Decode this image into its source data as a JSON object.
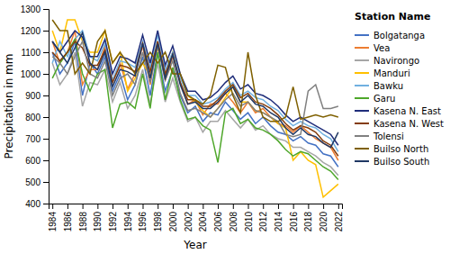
{
  "chart_data": {
    "type": "line",
    "title": "Station Name",
    "xlabel": "Year",
    "ylabel": "Precipitation in mm",
    "x": [
      1984,
      1985,
      1986,
      1987,
      1988,
      1989,
      1990,
      1991,
      1992,
      1993,
      1994,
      1995,
      1996,
      1997,
      1998,
      1999,
      2000,
      2001,
      2002,
      2003,
      2004,
      2005,
      2006,
      2007,
      2008,
      2009,
      2010,
      2011,
      2012,
      2013,
      2014,
      2015,
      2016,
      2017,
      2018,
      2019,
      2020,
      2021,
      2022
    ],
    "series": [
      {
        "name": "Bolgatanga",
        "color": "#4472c4",
        "values": [
          1100,
          1000,
          1050,
          1150,
          900,
          1050,
          1000,
          1080,
          920,
          1000,
          880,
          950,
          1080,
          900,
          1100,
          920,
          1020,
          900,
          820,
          850,
          780,
          820,
          810,
          870,
          830,
          790,
          820,
          770,
          800,
          760,
          730,
          720,
          690,
          710,
          680,
          670,
          630,
          620,
          570
        ]
      },
      {
        "name": "Vea",
        "color": "#ed7d31",
        "values": [
          1150,
          1050,
          1100,
          1200,
          950,
          1020,
          1020,
          1130,
          970,
          1050,
          930,
          1000,
          1130,
          950,
          1150,
          970,
          1080,
          960,
          860,
          880,
          810,
          860,
          860,
          910,
          870,
          820,
          870,
          820,
          840,
          800,
          770,
          760,
          730,
          760,
          730,
          700,
          680,
          660,
          600
        ]
      },
      {
        "name": "Navirongo",
        "color": "#a6a6a6",
        "values": [
          1050,
          950,
          1000,
          1100,
          850,
          960,
          950,
          1020,
          870,
          960,
          840,
          900,
          1020,
          860,
          1050,
          870,
          980,
          870,
          780,
          800,
          730,
          780,
          780,
          830,
          790,
          750,
          790,
          740,
          760,
          720,
          700,
          690,
          660,
          660,
          640,
          620,
          590,
          570,
          530
        ]
      },
      {
        "name": "Manduri",
        "color": "#ffc000",
        "values": [
          1200,
          1100,
          1250,
          1250,
          1150,
          1100,
          1100,
          1200,
          1050,
          1100,
          920,
          980,
          1050,
          990,
          1120,
          990,
          1100,
          1000,
          900,
          870,
          830,
          800,
          840,
          890,
          940,
          870,
          870,
          830,
          820,
          800,
          770,
          750,
          600,
          640,
          600,
          580,
          430,
          460,
          490
        ]
      },
      {
        "name": "Bawku",
        "color": "#70b0e0",
        "values": [
          1050,
          1150,
          1080,
          1160,
          1200,
          1080,
          1060,
          1140,
          970,
          1060,
          1050,
          1030,
          1150,
          1030,
          1180,
          1020,
          1100,
          980,
          900,
          900,
          860,
          870,
          890,
          930,
          960,
          900,
          920,
          890,
          880,
          850,
          830,
          790,
          760,
          780,
          760,
          750,
          720,
          700,
          640
        ]
      },
      {
        "name": "Garu",
        "color": "#4ea72a",
        "values": [
          980,
          1050,
          1100,
          1160,
          1000,
          920,
          1000,
          1020,
          750,
          860,
          870,
          840,
          1000,
          840,
          1100,
          880,
          1030,
          880,
          790,
          800,
          760,
          740,
          590,
          820,
          840,
          770,
          790,
          750,
          740,
          720,
          690,
          650,
          620,
          640,
          630,
          600,
          570,
          550,
          510
        ]
      },
      {
        "name": "Kasena N. East",
        "color": "#1f2d7a",
        "values": [
          1150,
          1100,
          1150,
          1200,
          1170,
          1080,
          1080,
          1160,
          1000,
          1080,
          1070,
          1050,
          1180,
          1050,
          1200,
          1040,
          1130,
          1000,
          920,
          920,
          880,
          890,
          920,
          960,
          990,
          930,
          950,
          910,
          900,
          880,
          850,
          810,
          780,
          800,
          780,
          760,
          740,
          720,
          670
        ]
      },
      {
        "name": "Kasena N. West",
        "color": "#843c0c",
        "values": [
          1100,
          1060,
          1100,
          1150,
          1120,
          1040,
          1040,
          1110,
          960,
          1040,
          1030,
          1010,
          1140,
          1010,
          1150,
          1000,
          1090,
          960,
          880,
          880,
          850,
          850,
          880,
          920,
          950,
          890,
          910,
          870,
          860,
          840,
          810,
          770,
          740,
          760,
          750,
          730,
          690,
          670,
          620
        ]
      },
      {
        "name": "Tolensi",
        "color": "#808080",
        "values": [
          1080,
          1050,
          1000,
          1080,
          1150,
          1000,
          980,
          1060,
          900,
          980,
          1000,
          950,
          1100,
          960,
          1130,
          970,
          1060,
          910,
          830,
          840,
          820,
          800,
          840,
          880,
          910,
          850,
          870,
          830,
          820,
          800,
          780,
          720,
          710,
          720,
          920,
          950,
          840,
          840,
          850
        ]
      },
      {
        "name": "Builso North",
        "color": "#7f6000",
        "values": [
          1250,
          1200,
          1200,
          1000,
          1050,
          1000,
          1150,
          1200,
          1050,
          1100,
          1050,
          1000,
          1050,
          1100,
          1050,
          1100,
          1000,
          1000,
          900,
          880,
          860,
          900,
          1040,
          1030,
          900,
          820,
          1100,
          900,
          800,
          780,
          780,
          800,
          940,
          790,
          800,
          810,
          800,
          810,
          800
        ]
      },
      {
        "name": "Builso South",
        "color": "#203864",
        "values": [
          1150,
          1100,
          1050,
          1120,
          1190,
          1050,
          1020,
          1100,
          940,
          1020,
          1010,
          990,
          1140,
          980,
          1140,
          980,
          1090,
          950,
          860,
          870,
          840,
          840,
          870,
          910,
          940,
          870,
          900,
          860,
          850,
          820,
          800,
          750,
          720,
          750,
          720,
          710,
          680,
          660,
          730
        ]
      }
    ],
    "xlim": [
      1983.5,
      2022.5
    ],
    "xticks": [
      1984,
      1986,
      1988,
      1990,
      1992,
      1994,
      1996,
      1998,
      2000,
      2002,
      2004,
      2006,
      2008,
      2010,
      2012,
      2014,
      2016,
      2018,
      2020,
      2022
    ],
    "ylim": [
      400,
      1300
    ],
    "yticks": [
      400,
      500,
      600,
      700,
      800,
      900,
      1000,
      1100,
      1200,
      1300
    ],
    "grid": false,
    "legend": "right"
  }
}
